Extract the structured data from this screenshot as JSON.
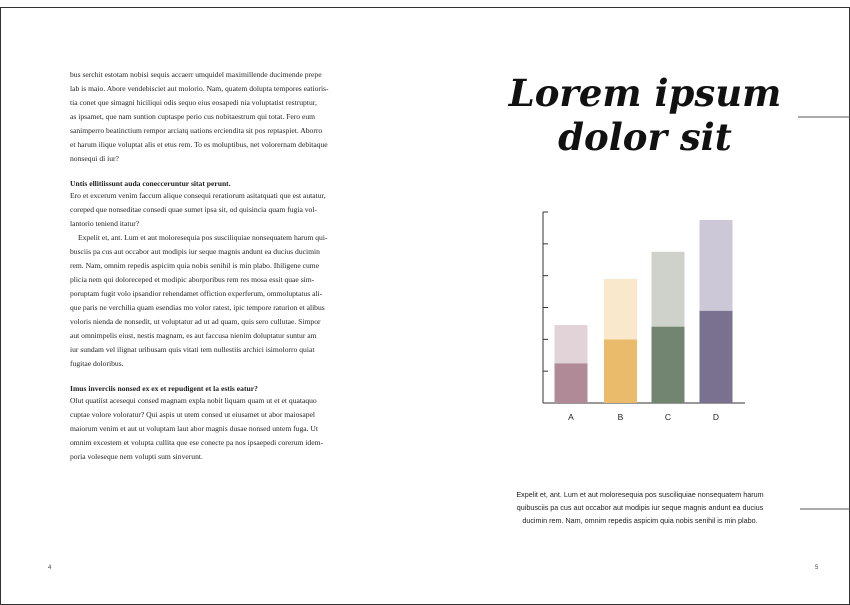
{
  "left_page": {
    "blocks": [
      {
        "kind": "p",
        "lines": [
          "bus serchit estotam nobisi sequis accaerr umquidel maximillende ducimende prepe",
          "lab is maio. Abore vendebisciet aut molorio. Nam, quatem dolupta tempores eatioris-",
          "tia conet que simagni hiciliqui odis sequo eius eosapedi nia voluptatist restruptur,",
          "as ipsamet, que nam suntion cuptaspe perio cus nobitaestrum qui totat. Fero eum",
          "sanimperro beatinctium rempor arciatq uations erciendita sit pos reptaspiet. Aborro",
          "et harum ilique voluptat alis et etus rem. To es moluptibus, net volorernam debitaque",
          "nonsequi di iur?"
        ]
      },
      {
        "kind": "h",
        "lines": [
          "Untis ellitiissunt auda conecceruntur sitat perunt."
        ]
      },
      {
        "kind": "p",
        "lines": [
          "Ero et excerum venim faccum alique consequi reratiorum asitatquati que est autatur,",
          "coreped que nonseditae consedi quae sumet ipsa sit, od quisincia quam fugia vol-",
          "lantorio teniend itatur?",
          "Expelit et, ant. Lum et aut moloresequia pos susciliquiae nonsequatem harum qui-",
          "busciis pa cus aut occabor aut modipis iur seque magnis andunt ea ducius ducimin",
          "rem. Nam, omnim repedis aspicim quia nobis senihil is min plabo. Ihiligene cume",
          "plicia nem qui doloreceped et modipic aborporibus rem res mosa essit quae sim-",
          "poruptam fugit volo ipsandior rehendamet offiction experferum, ommoluptatus ali-",
          "que paris ne verchilia quam esendias mo volor ratest, ipic tempore raturion et alibus",
          "voloris nienda de nonsedit, ut voluptatur ad ut ad quam, quis sero cullutae. Simpor",
          "aut omnimpelis eiust, nestis magnam, es aut faccusa nienim doluptatur suntur am",
          "iur sundam vel ilignat uribusam quis vitati tem nullestiis archici isimolorro quiat",
          "fugitae doloribus."
        ]
      },
      {
        "kind": "h",
        "lines": [
          "Imus inverciis nonsed ex ex et repudigent et la estis eatur?"
        ]
      },
      {
        "kind": "p",
        "lines": [
          "Olut quatiist acesequi consed magnam expla nobit liquam quam ut et et quataquo",
          "cuptae volore voloratur? Qui aspis ut utem consed ut eiusamet ut abor maiosapel",
          "maiorum venim et aut ut voluptam laut abor magnis dusae nonsed untem fuga. Ut",
          "omnim excestem et volupta cullita que ese conecte pa nos ipsaepedi corerum idem-",
          "poria voleseque nem volupti sum sinverunt."
        ]
      }
    ],
    "page_number": "4"
  },
  "right_page": {
    "title_lines": [
      "Lorem ipsum",
      "dolor sit"
    ],
    "caption_lines": [
      "Expelit et, ant. Lum et aut moloresequia pos susciliquiae nonsequatem harum",
      "quibusciis pa cus aut occabor aut modipis iur seque magnis andunt ea ducius",
      "ducimin rem. Nam, omnim repedis aspicim quia nobis senihil is min plabo."
    ],
    "page_number": "5"
  },
  "chart_data": {
    "type": "stacked_bar",
    "categories": [
      "A",
      "B",
      "C",
      "D"
    ],
    "series": [
      {
        "colors": [
          "#b08a96",
          "#e9bb6b",
          "#728571",
          "#7a7191"
        ],
        "values": [
          1.25,
          2.0,
          2.4,
          2.9
        ]
      },
      {
        "colors": [
          "#e2d3d8",
          "#f9e8cc",
          "#cfd1cb",
          "#ccc8d7"
        ],
        "values": [
          1.2,
          1.9,
          2.35,
          2.85
        ]
      }
    ],
    "ylim": [
      0,
      6
    ],
    "yticks": [
      1,
      2,
      3,
      4,
      5,
      6
    ]
  }
}
